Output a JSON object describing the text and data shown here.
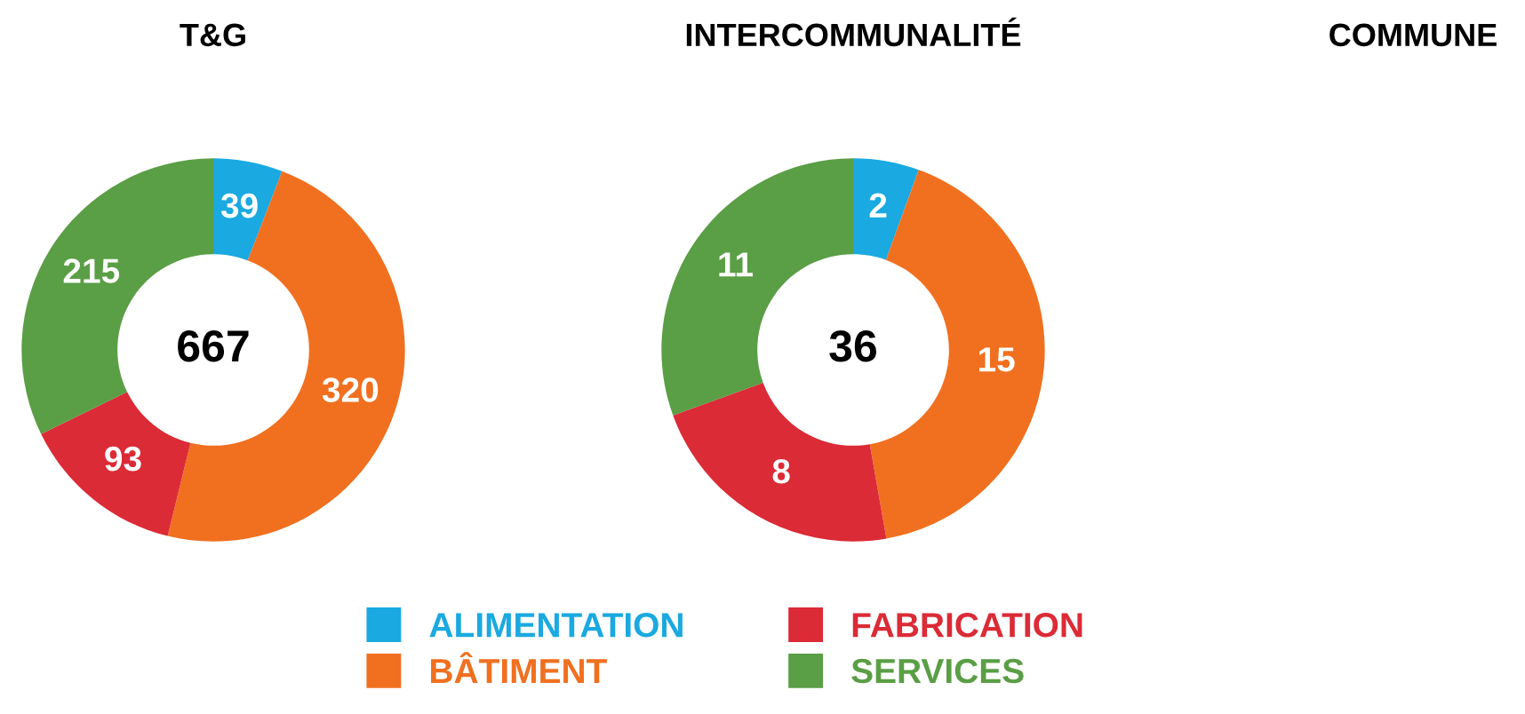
{
  "chart_data": [
    {
      "type": "donut",
      "title": "T&G",
      "categories": [
        "ALIMENTATION",
        "BÂTIMENT",
        "FABRICATION",
        "SERVICES"
      ],
      "values": [
        39,
        320,
        93,
        215
      ],
      "colors": [
        "#1aa9e0",
        "#f07020",
        "#db2b36",
        "#5a9e45"
      ],
      "data_labels": true,
      "annotations": [
        "667"
      ],
      "legend": "bottom"
    },
    {
      "type": "donut",
      "title": "INTERCOMMUNALITÉ",
      "values": [
        2,
        15,
        8,
        11
      ],
      "colors": [
        "#1aa9e0",
        "#f07020",
        "#db2b36",
        "#5a9e45"
      ],
      "data_labels": true,
      "annotations": [
        "36"
      ]
    },
    {
      "type": "other",
      "title": "COMMUNE"
    }
  ]
}
